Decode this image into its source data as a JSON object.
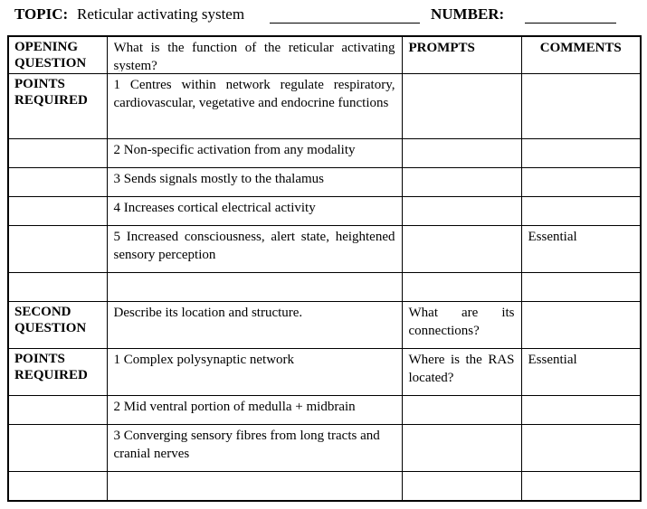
{
  "header": {
    "topic_label": "TOPIC:",
    "topic_value": "Reticular activating system",
    "number_label": "NUMBER:"
  },
  "table": {
    "col_prompts": "PROMPTS",
    "col_comments": "COMMENTS",
    "opening_question_label": "OPENING QUESTION",
    "opening_question": "What is the function of the reticular activating system?",
    "points_required_label": "POINTS REQUIRED",
    "points_1": [
      "1 Centres within network regulate respiratory, cardiovascular, vegetative and endocrine functions",
      "2 Non-specific activation from any modality",
      "3 Sends signals mostly to the thalamus",
      "4 Increases cortical electrical activity",
      "5 Increased consciousness, alert state, heightened sensory perception"
    ],
    "comment_essential_1": "Essential",
    "second_question_label": "SECOND QUESTION",
    "second_question": "Describe its location and structure.",
    "second_prompt": "What are its connections?",
    "points_2": [
      "1 Complex polysynaptic network",
      "2 Mid ventral portion of medulla + midbrain",
      "3 Converging sensory fibres from long tracts and cranial nerves"
    ],
    "points_2_prompt": "Where is the RAS located?",
    "comment_essential_2": "Essential"
  }
}
